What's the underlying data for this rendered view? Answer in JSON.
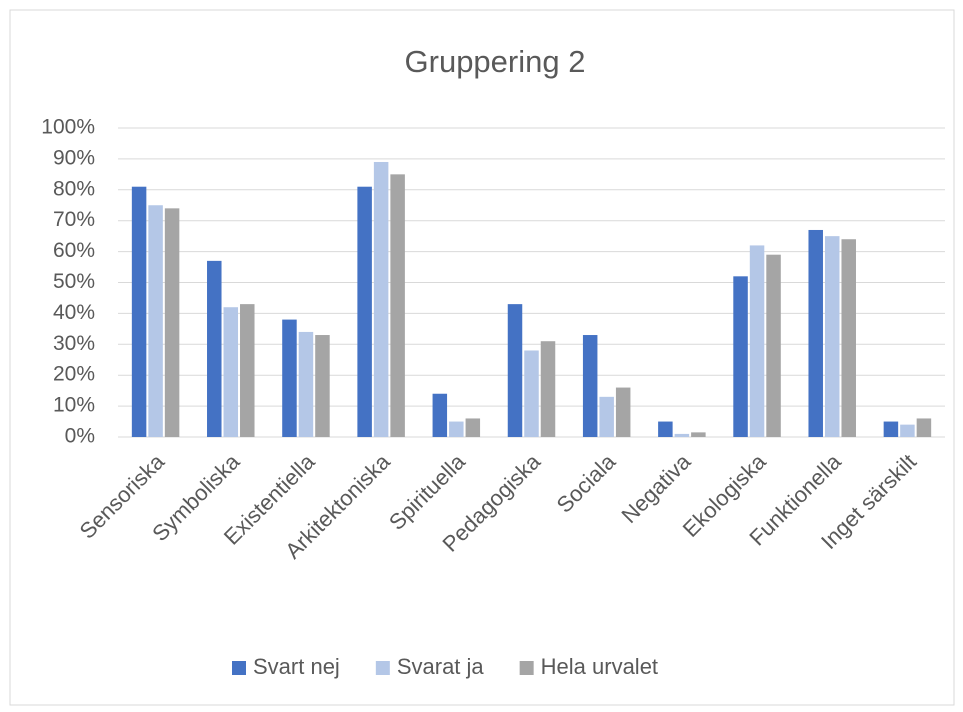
{
  "chart_data": {
    "type": "bar",
    "title": "Gruppering 2",
    "categories": [
      "Sensoriska",
      "Symboliska",
      "Existentiella",
      "Arkitektoniska",
      "Spirituella",
      "Pedagogiska",
      "Sociala",
      "Negativa",
      "Ekologiska",
      "Funktionella",
      "Inget särskilt"
    ],
    "series": [
      {
        "name": "Svart nej",
        "color": "#4472c4",
        "values": [
          81,
          57,
          38,
          81,
          14,
          43,
          33,
          5,
          52,
          67,
          5
        ]
      },
      {
        "name": "Svarat ja",
        "color": "#b4c7e7",
        "values": [
          75,
          42,
          34,
          89,
          5,
          28,
          13,
          1,
          62,
          65,
          4
        ]
      },
      {
        "name": "Hela urvalet",
        "color": "#a5a5a5",
        "values": [
          74,
          43,
          33,
          85,
          6,
          31,
          16,
          1.5,
          59,
          64,
          6
        ]
      }
    ],
    "ylim": [
      0,
      100
    ],
    "yticks": [
      {
        "value": 0,
        "label": "0%"
      },
      {
        "value": 10,
        "label": "10%"
      },
      {
        "value": 20,
        "label": "20%"
      },
      {
        "value": 30,
        "label": "30%"
      },
      {
        "value": 40,
        "label": "40%"
      },
      {
        "value": 50,
        "label": "50%"
      },
      {
        "value": 60,
        "label": "60%"
      },
      {
        "value": 70,
        "label": "70%"
      },
      {
        "value": 80,
        "label": "80%"
      },
      {
        "value": 90,
        "label": "90%"
      },
      {
        "value": 100,
        "label": "100%"
      }
    ],
    "grid": true,
    "legend": "bottom"
  }
}
